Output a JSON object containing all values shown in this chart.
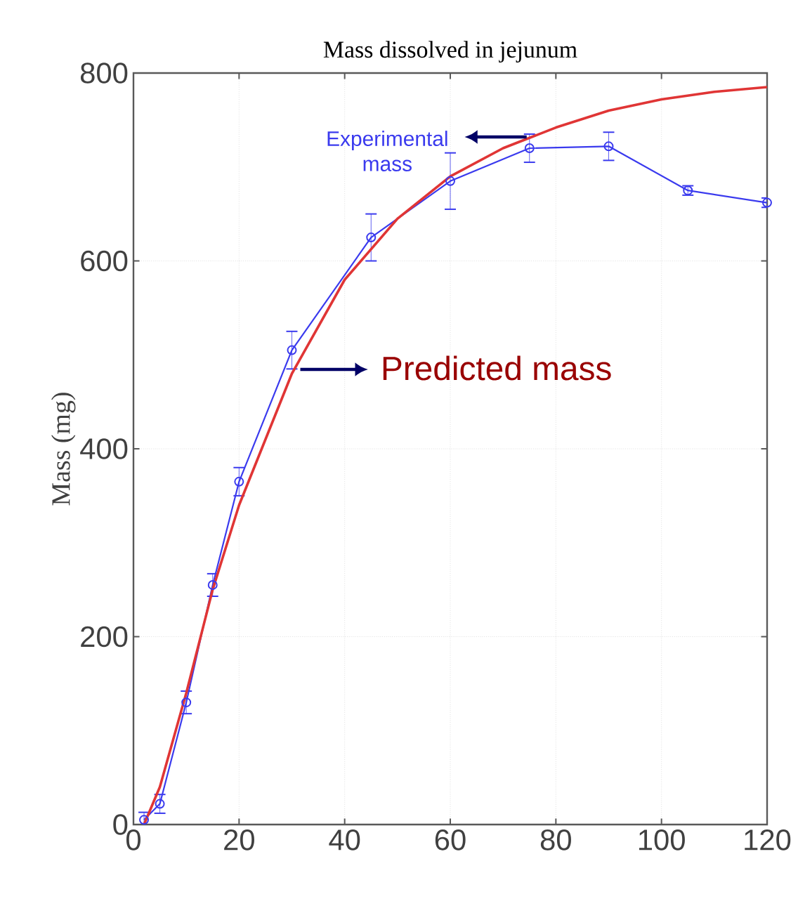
{
  "chart_data": {
    "type": "line",
    "title": "Mass dissolved in jejunum",
    "ylabel": "Mass (mg)",
    "xlim": [
      0,
      120
    ],
    "ylim": [
      0,
      800
    ],
    "xticks": [
      0,
      20,
      40,
      60,
      80,
      100,
      120
    ],
    "yticks": [
      0,
      200,
      400,
      600,
      800
    ],
    "grid": true,
    "series": [
      {
        "name": "Experimental mass",
        "color": "#3a3aee",
        "marker": "circle",
        "x": [
          2,
          5,
          10,
          15,
          20,
          30,
          45,
          60,
          75,
          90,
          105,
          120
        ],
        "values": [
          5,
          22,
          130,
          255,
          365,
          505,
          625,
          685,
          720,
          722,
          675,
          662
        ],
        "errors": [
          8,
          10,
          12,
          12,
          15,
          20,
          25,
          30,
          15,
          15,
          5,
          5
        ]
      },
      {
        "name": "Predicted mass",
        "color": "#e03535",
        "marker": "none",
        "x": [
          2,
          5,
          10,
          15,
          20,
          30,
          40,
          50,
          60,
          70,
          80,
          90,
          100,
          110,
          120
        ],
        "values": [
          0,
          40,
          140,
          250,
          340,
          480,
          580,
          645,
          690,
          720,
          742,
          760,
          772,
          780,
          785
        ]
      }
    ]
  }
}
